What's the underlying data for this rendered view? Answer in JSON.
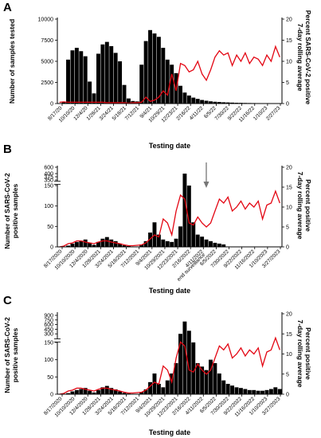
{
  "chart_data": [
    {
      "panel": "A",
      "type": "bar+line",
      "xlabel": "Testing date",
      "ylabel_left": "Number of samples tested",
      "ylabel_right": "Percent SARS-CoV-2 positive 7-day rolling average",
      "ylim_left": [
        0,
        10000
      ],
      "ylim_right": [
        0,
        20
      ],
      "yticks_left": [
        "0",
        "2500",
        "5000",
        "7500",
        "10000"
      ],
      "yticks_right": [
        "0",
        "5",
        "10",
        "15",
        "20"
      ],
      "x_ticks": [
        "8/17/20",
        "10/10/20",
        "12/4/20",
        "1/28/21",
        "3/24/21",
        "5/18/21",
        "7/12/21",
        "9/4/21",
        "10/29/21",
        "12/23/21",
        "2/16/22",
        "4/11/22",
        "6/5/22",
        "7/30/22",
        "9/22/22",
        "11/16/22",
        "1/10/23",
        "2/27/23"
      ],
      "series": [
        {
          "kind": "bar",
          "color": "#000000",
          "values": [
            0,
            200,
            5200,
            6300,
            6600,
            6200,
            5600,
            2600,
            1200,
            5900,
            7000,
            7300,
            6800,
            6000,
            5000,
            2200,
            600,
            300,
            250,
            4600,
            7400,
            8700,
            8300,
            7900,
            6600,
            5200,
            4600,
            3600,
            2100,
            1300,
            950,
            700,
            550,
            420,
            330,
            260,
            210,
            180,
            150,
            130,
            110,
            90,
            80,
            70,
            60,
            55,
            50,
            45,
            40,
            35,
            30,
            28
          ]
        },
        {
          "kind": "line",
          "color": "#e30613",
          "values": [
            0.3,
            0.4,
            0.3,
            0.3,
            0.3,
            0.3,
            0.3,
            0.3,
            0.3,
            0.3,
            0.3,
            0.2,
            0.2,
            0.2,
            0.2,
            0.2,
            0.1,
            0.2,
            0.2,
            0.3,
            1.5,
            0.5,
            0.8,
            1.5,
            3.0,
            2.0,
            7.0,
            3.0,
            9.5,
            9.0,
            7.5,
            8.0,
            10.0,
            7.0,
            5.5,
            8.0,
            11.0,
            12.5,
            11.5,
            12.0,
            9.0,
            11.5,
            10.0,
            12.0,
            9.5,
            11.0,
            10.5,
            9.0,
            11.5,
            10.0,
            13.5,
            11.0
          ]
        }
      ]
    },
    {
      "panel": "B",
      "type": "bar+line",
      "xlabel": "Testing date",
      "ylabel_left": "Number of SARS-CoV-2 positive samples",
      "ylabel_right": "Percent positive 7-day rolling average",
      "ylim_right": [
        0,
        20
      ],
      "yticks_left": [
        "0",
        "50",
        "100",
        "150",
        "350",
        "375",
        "400",
        "600"
      ],
      "yticks_right": [
        "0",
        "5",
        "10",
        "15",
        "20"
      ],
      "annotation": "end surveillance",
      "x_ticks": [
        "8/17/2020",
        "10/10/2020",
        "12/4/2020",
        "1/28/2021",
        "3/24/2021",
        "5/18/2021",
        "7/12/2021",
        "9/4/2021",
        "10/29/2021",
        "12/23/2021",
        "2/16/2022",
        "4/11/2022",
        "6/5/2022",
        "7/30/2022",
        "9/22/2022",
        "11/16/2022",
        "1/10/2023",
        "3/27/2023"
      ],
      "series": [
        {
          "kind": "bar",
          "color": "#000000",
          "values": [
            0,
            0,
            3,
            8,
            12,
            15,
            18,
            10,
            5,
            12,
            20,
            24,
            18,
            14,
            8,
            4,
            2,
            1,
            1,
            6,
            14,
            35,
            60,
            30,
            18,
            14,
            12,
            20,
            50,
            400,
            150,
            60,
            30,
            25,
            18,
            14,
            10,
            8,
            6,
            0,
            0,
            0,
            0,
            0,
            0,
            0,
            0,
            0,
            0,
            0,
            0,
            0
          ]
        },
        {
          "kind": "line",
          "color": "#e30613",
          "values": [
            0,
            0.2,
            0.8,
            1.0,
            1.5,
            1.5,
            1.2,
            1.0,
            0.8,
            1.2,
            1.5,
            1.5,
            1.2,
            1.0,
            0.8,
            0.5,
            0.3,
            0.3,
            0.4,
            0.5,
            1.0,
            2.0,
            3.0,
            2.5,
            7.0,
            6.0,
            3.0,
            9.0,
            13.0,
            12.0,
            6.0,
            5.5,
            7.5,
            6.0,
            5.0,
            6.0,
            9.0,
            12.0,
            11.0,
            12.5,
            9.0,
            10.0,
            11.5,
            9.5,
            11.0,
            10.0,
            11.5,
            7.0,
            10.5,
            11.0,
            14.0,
            11.0
          ]
        }
      ]
    },
    {
      "panel": "C",
      "type": "bar+line",
      "xlabel": "Testing date",
      "ylabel_left": "Number of SARS-CoV-2 positive samples",
      "ylabel_right": "Percent positive 7-day rolling average",
      "ylim_right": [
        0,
        20
      ],
      "yticks_left": [
        "0",
        "50",
        "100",
        "150",
        "300",
        "450",
        "600",
        "750",
        "900"
      ],
      "yticks_right": [
        "0",
        "5",
        "10",
        "15",
        "20"
      ],
      "x_ticks": [
        "8/17/2020",
        "10/10/2020",
        "12/4/2020",
        "1/28/2021",
        "3/24/2021",
        "5/18/2021",
        "7/12/2021",
        "9/4/2021",
        "10/29/2021",
        "12/23/2021",
        "2/16/2022",
        "4/11/2022",
        "6/5/2022",
        "7/30/2022",
        "9/22/2022",
        "11/16/2022",
        "1/10/2023",
        "3/27/2023"
      ],
      "series": [
        {
          "kind": "bar",
          "color": "#000000",
          "values": [
            0,
            0,
            3,
            8,
            12,
            15,
            18,
            10,
            5,
            12,
            20,
            24,
            18,
            14,
            8,
            4,
            2,
            1,
            1,
            6,
            14,
            35,
            60,
            30,
            20,
            40,
            60,
            90,
            300,
            700,
            400,
            150,
            90,
            80,
            70,
            100,
            90,
            60,
            40,
            30,
            25,
            20,
            18,
            15,
            12,
            12,
            10,
            10,
            12,
            15,
            20,
            15
          ]
        },
        {
          "kind": "line",
          "color": "#e30613",
          "values": [
            0,
            0.2,
            0.8,
            1.0,
            1.5,
            1.5,
            1.2,
            1.0,
            0.8,
            1.2,
            1.5,
            1.5,
            1.2,
            1.0,
            0.8,
            0.5,
            0.3,
            0.3,
            0.4,
            0.5,
            1.0,
            2.0,
            3.0,
            2.5,
            7.0,
            6.0,
            3.0,
            9.0,
            13.0,
            12.0,
            6.0,
            5.5,
            7.5,
            6.0,
            5.0,
            6.0,
            9.0,
            12.0,
            11.0,
            12.5,
            9.0,
            10.0,
            11.5,
            9.5,
            11.0,
            10.0,
            11.5,
            7.0,
            10.5,
            11.0,
            14.0,
            11.0
          ]
        }
      ]
    }
  ]
}
